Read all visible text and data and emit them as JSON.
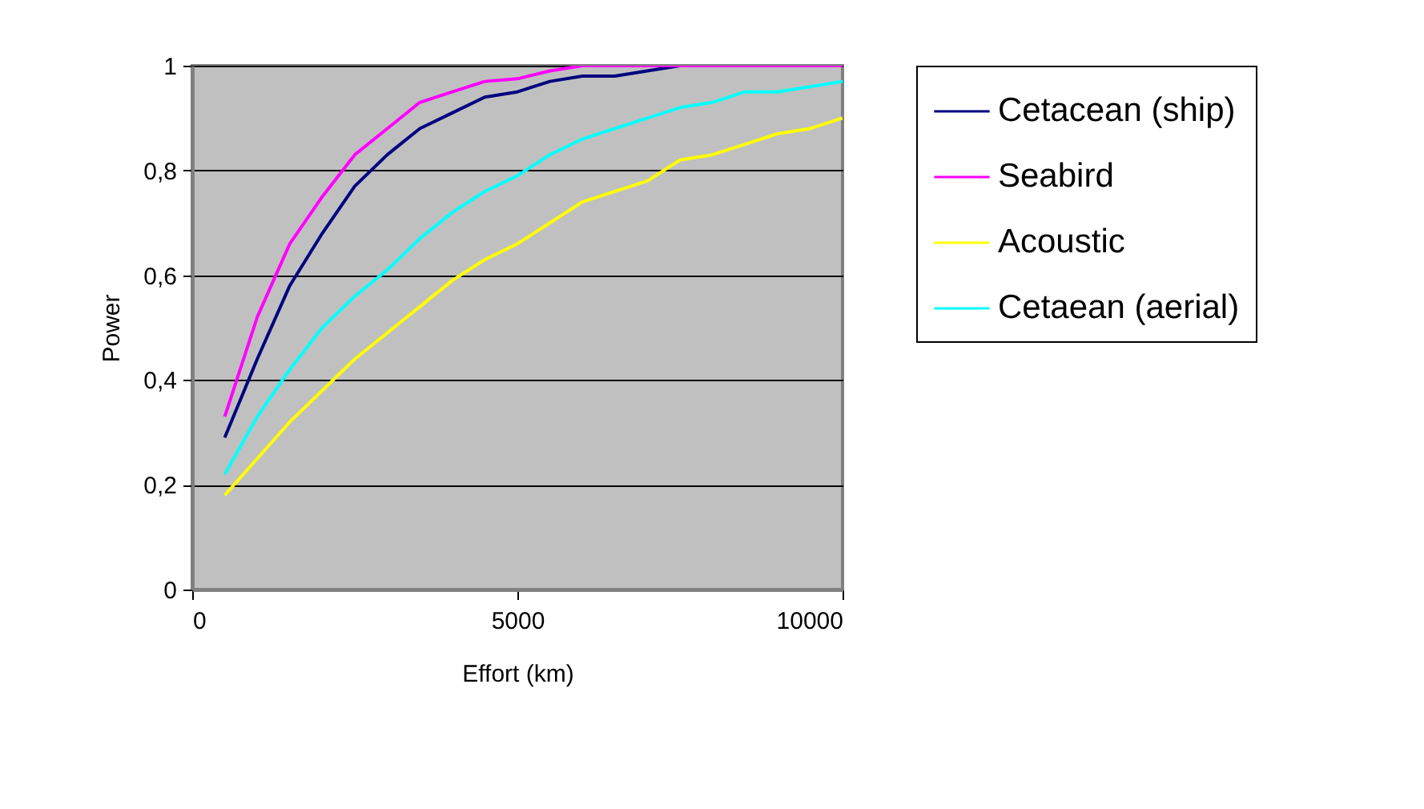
{
  "chart_data": {
    "type": "line",
    "xlabel": "Effort (km)",
    "ylabel": "Power",
    "x": [
      500,
      1000,
      1500,
      2000,
      2500,
      3000,
      3500,
      4000,
      4500,
      5000,
      5500,
      6000,
      6500,
      7000,
      7500,
      8000,
      8500,
      9000,
      9500,
      10000
    ],
    "series": [
      {
        "name": "Cetacean (ship)",
        "color": "#000080",
        "values": [
          0.29,
          0.44,
          0.58,
          0.68,
          0.77,
          0.83,
          0.88,
          0.91,
          0.94,
          0.95,
          0.97,
          0.98,
          0.98,
          0.99,
          1,
          null,
          null,
          null,
          null,
          null
        ]
      },
      {
        "name": "Seabird",
        "color": "#ff00ff",
        "values": [
          0.33,
          0.52,
          0.66,
          0.75,
          0.83,
          0.88,
          0.93,
          0.95,
          0.97,
          0.975,
          0.99,
          1,
          1,
          1,
          1,
          1,
          1,
          1,
          1,
          1
        ]
      },
      {
        "name": "Acoustic",
        "color": "#ffff00",
        "values": [
          0.18,
          0.25,
          0.32,
          0.38,
          0.44,
          0.49,
          0.54,
          0.59,
          0.63,
          0.66,
          0.7,
          0.74,
          0.76,
          0.78,
          0.82,
          0.83,
          0.85,
          0.87,
          0.88,
          0.9
        ]
      },
      {
        "name": "Cetaean (aerial)",
        "color": "#00ffff",
        "values": [
          0.22,
          0.33,
          0.42,
          0.5,
          0.56,
          0.61,
          0.67,
          0.72,
          0.76,
          0.79,
          0.83,
          0.86,
          0.88,
          0.9,
          0.92,
          0.93,
          0.95,
          0.95,
          0.96,
          0.97
        ]
      }
    ],
    "xlim": [
      0,
      10000
    ],
    "xticks": [
      0,
      5000,
      10000
    ],
    "ylim": [
      0,
      1
    ],
    "yticks": [
      0,
      {
        "value": 0.2,
        "label": "0,2"
      },
      {
        "value": 0.4,
        "label": "0,4"
      },
      {
        "value": 0.6,
        "label": "0,6"
      },
      {
        "value": 0.8,
        "label": "0,8"
      },
      1
    ],
    "grid": "y",
    "legend": "right",
    "marker": "none",
    "line_style": "solid"
  }
}
